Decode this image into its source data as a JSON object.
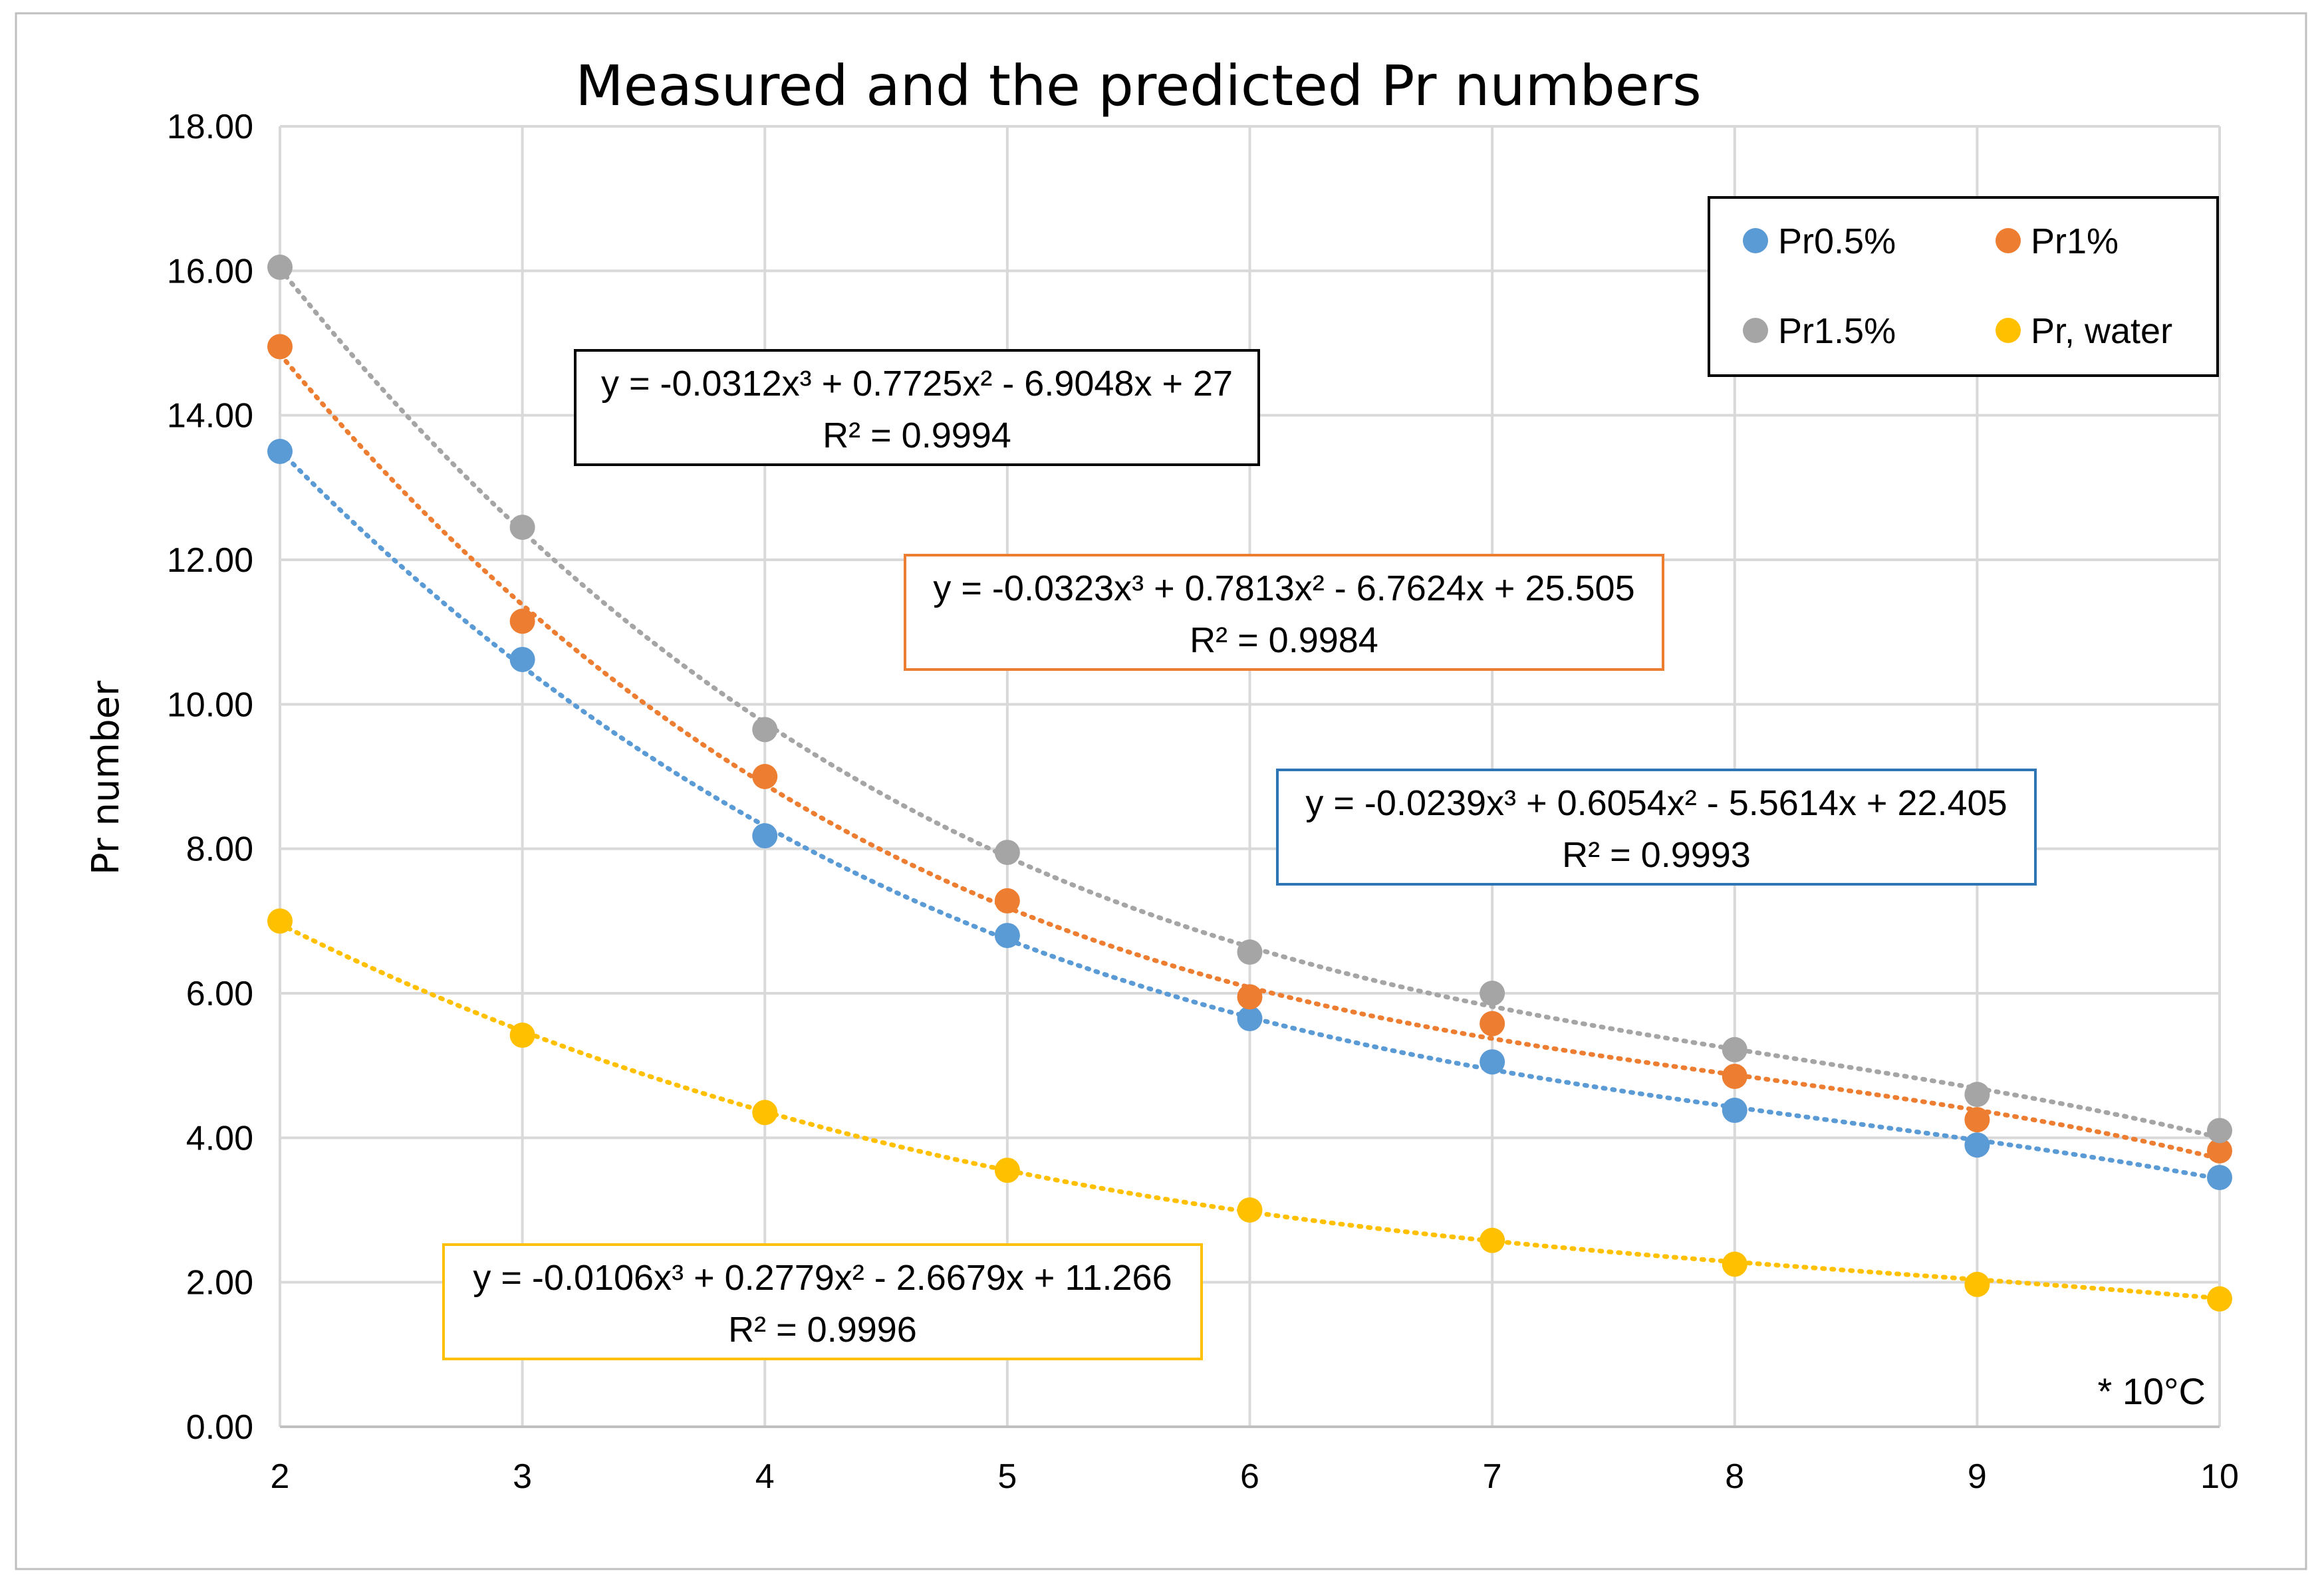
{
  "chart_data": {
    "type": "scatter",
    "title": "Measured and the predicted Pr numbers",
    "xlabel": "",
    "ylabel": "Pr number",
    "x": [
      2,
      3,
      4,
      5,
      6,
      7,
      8,
      9,
      10
    ],
    "x_ticks": [
      "2",
      "3",
      "4",
      "5",
      "6",
      "7",
      "8",
      "9",
      "10"
    ],
    "xlim": [
      2,
      10
    ],
    "ylim": [
      0,
      18
    ],
    "y_ticks": [
      "0.00",
      "2.00",
      "4.00",
      "6.00",
      "8.00",
      "10.00",
      "12.00",
      "14.00",
      "16.00",
      "18.00"
    ],
    "grid": true,
    "legend_position": "top-right",
    "note": "* 10°C",
    "series": [
      {
        "name": "Pr0.5%",
        "color": "#5B9BD5",
        "values": [
          13.5,
          10.62,
          8.18,
          6.8,
          5.65,
          5.05,
          4.38,
          3.9,
          3.45
        ],
        "trendline": {
          "type": "poly3",
          "coefficients": [
            -0.0239,
            0.6054,
            -5.5614,
            22.405
          ],
          "equation": "y = -0.0239x³ + 0.6054x² - 5.5614x + 22.405",
          "r2": "R² = 0.9993",
          "box_color": "#2E75B6"
        }
      },
      {
        "name": "Pr1%",
        "color": "#ED7D31",
        "values": [
          14.95,
          11.15,
          9.0,
          7.28,
          5.95,
          5.58,
          4.85,
          4.25,
          3.82
        ],
        "trendline": {
          "type": "poly3",
          "coefficients": [
            -0.0323,
            0.7813,
            -6.7624,
            25.505
          ],
          "equation": "y = -0.0323x³ + 0.7813x² - 6.7624x + 25.505",
          "r2": "R² = 0.9984",
          "box_color": "#ED7D31"
        }
      },
      {
        "name": "Pr1.5%",
        "color": "#A5A5A5",
        "values": [
          16.05,
          12.45,
          9.65,
          7.95,
          6.57,
          6.0,
          5.22,
          4.6,
          4.1
        ],
        "trendline": {
          "type": "poly3",
          "coefficients": [
            -0.0312,
            0.7725,
            -6.9048,
            27
          ],
          "equation": "y = -0.0312x³ + 0.7725x² - 6.9048x + 27",
          "r2": "R² = 0.9994",
          "box_color": "#000000"
        }
      },
      {
        "name": "Pr, water",
        "color": "#FFC000",
        "values": [
          7.0,
          5.42,
          4.35,
          3.55,
          3.0,
          2.58,
          2.25,
          1.97,
          1.77
        ],
        "trendline": {
          "type": "poly3",
          "coefficients": [
            -0.0106,
            0.2779,
            -2.6679,
            11.266
          ],
          "equation": "y = -0.0106x³ + 0.2779x² - 2.6679x + 11.266",
          "r2": "R² = 0.9996",
          "box_color": "#FFC000"
        }
      }
    ]
  }
}
